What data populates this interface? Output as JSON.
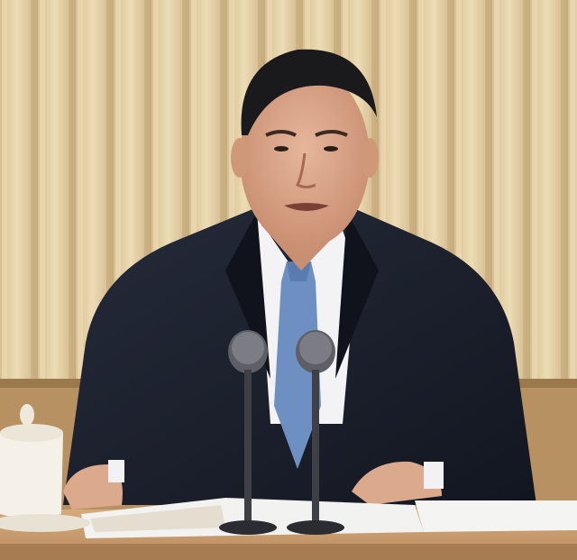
{
  "image": {
    "subject": "man-speaking-at-conference-table",
    "colors": {
      "curtain_light": "#e7d3a6",
      "curtain_dark": "#c9b083",
      "wall_panel": "#b08a5c",
      "suit": "#1c2130",
      "shirt": "#f4f4f6",
      "tie": "#6d8fc1",
      "skin": "#d9a58a",
      "hair": "#1a1a1d",
      "table": "#c79b6f",
      "paper": "#f2f2f0",
      "mic_metal": "#5a5a60"
    }
  }
}
